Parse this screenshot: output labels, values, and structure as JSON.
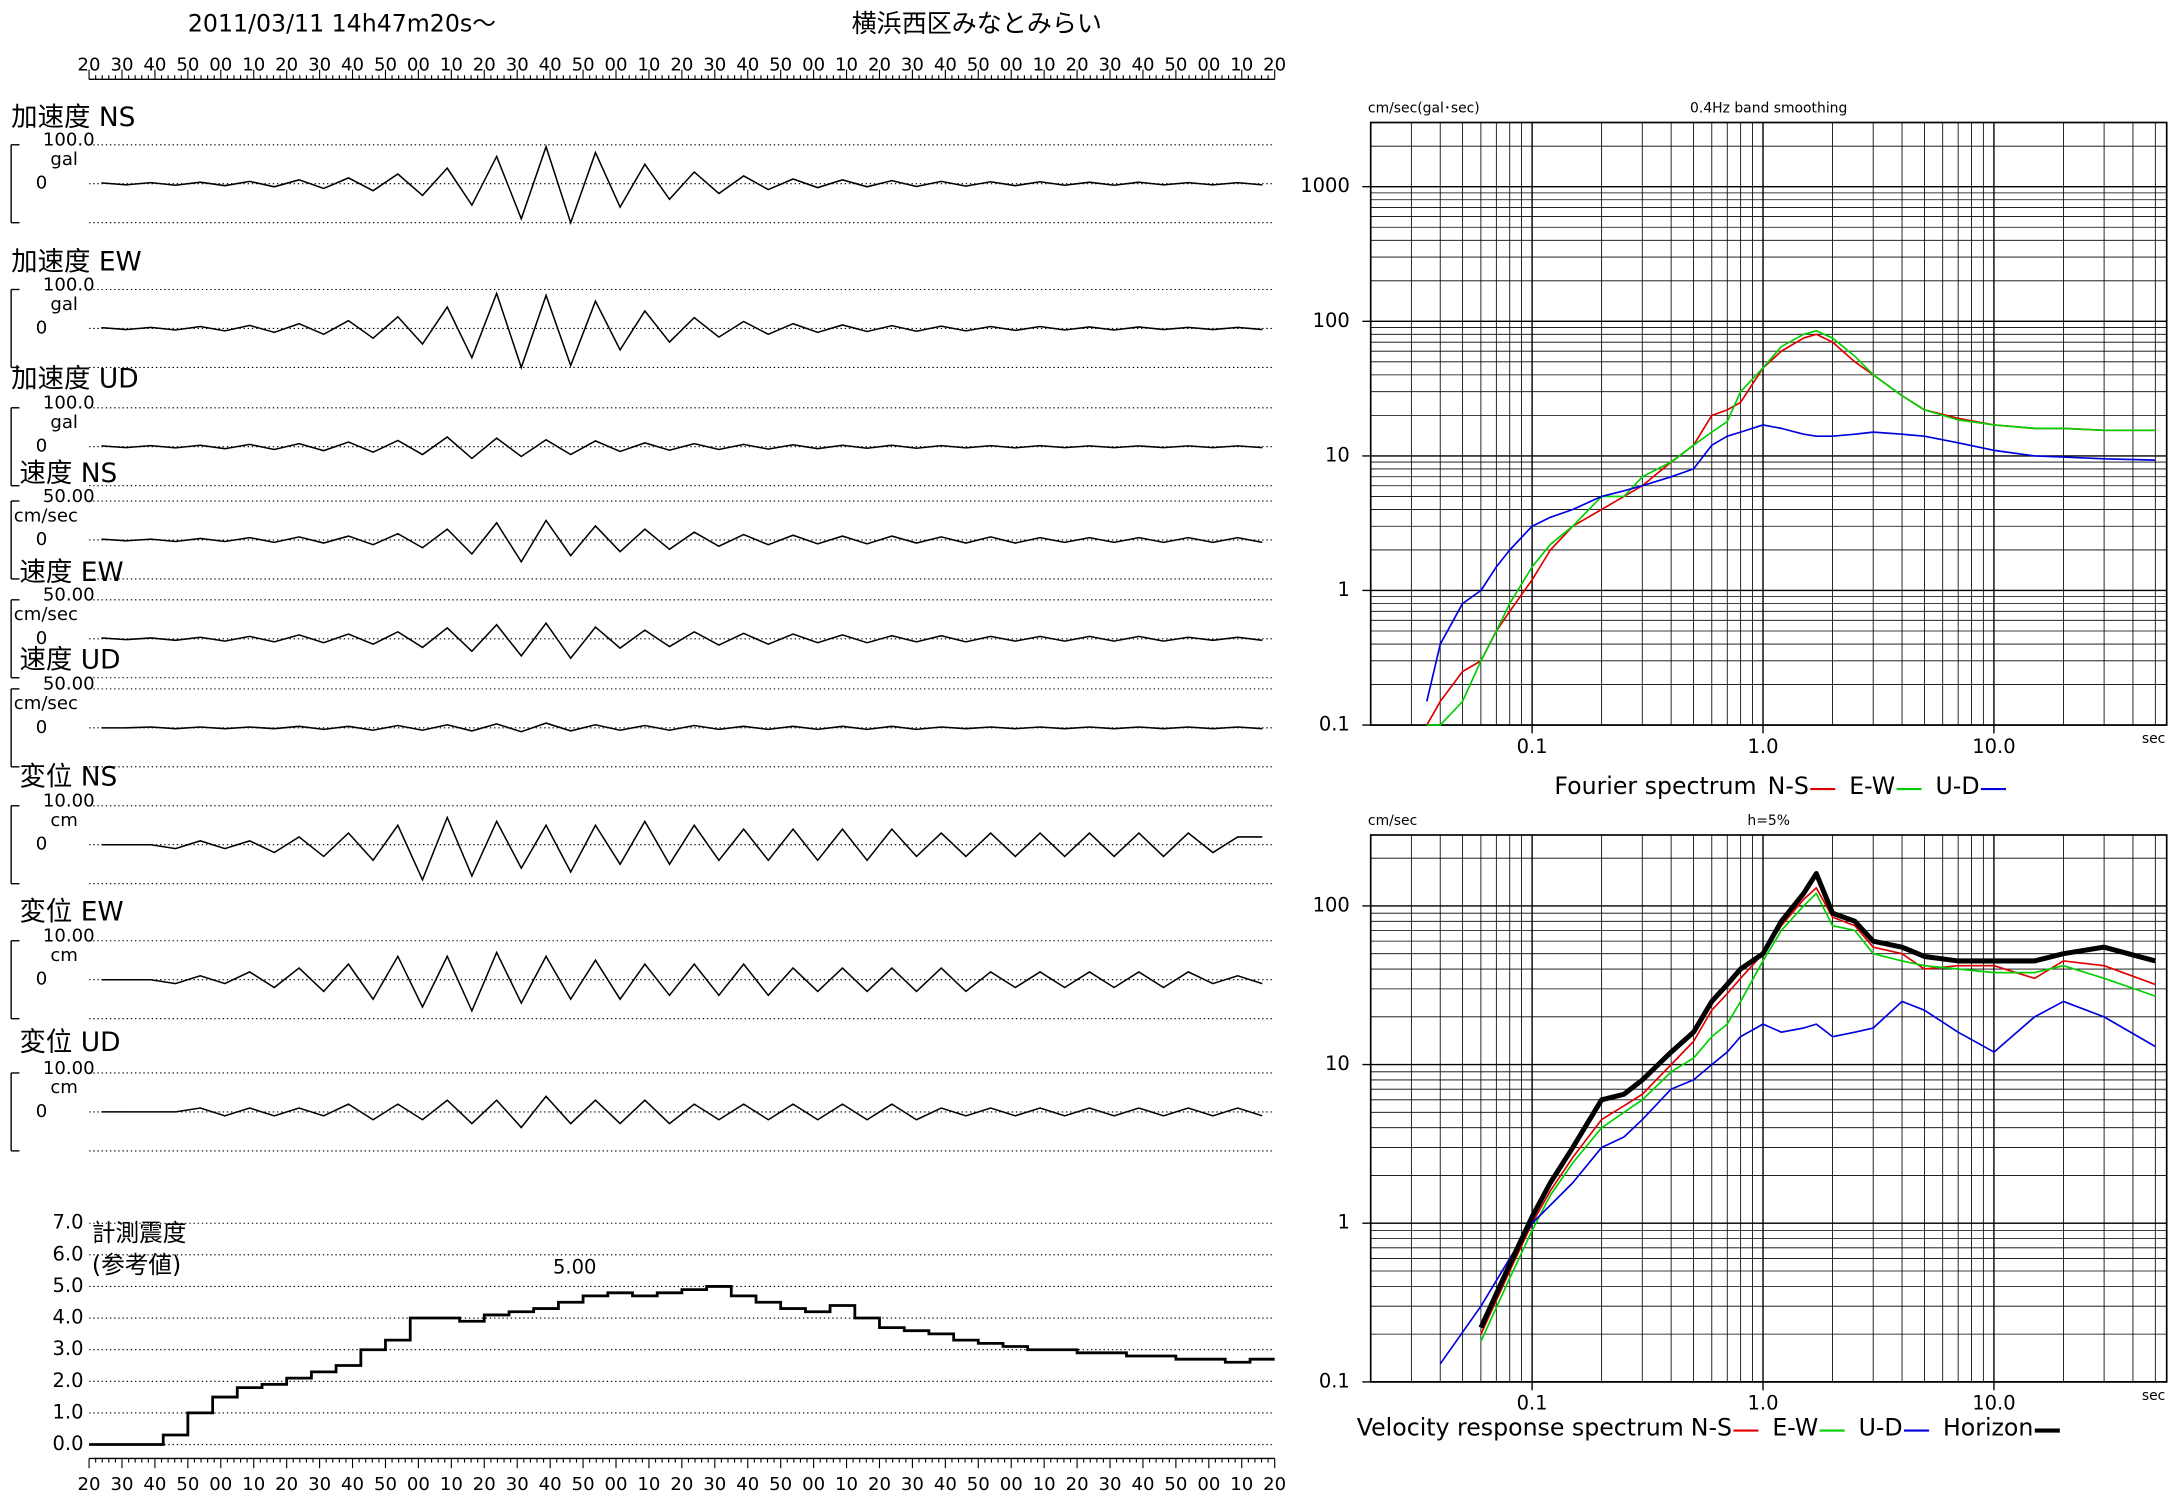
{
  "header": {
    "date": "2011/03/11  14h47m20s～",
    "location": "横浜西区みなとみらい"
  },
  "time_axis": [
    "20",
    "30",
    "40",
    "50",
    "00",
    "10",
    "20",
    "30",
    "40",
    "50",
    "00",
    "10",
    "20",
    "30",
    "40",
    "50",
    "00",
    "10",
    "20",
    "30",
    "40",
    "50",
    "00",
    "10",
    "20",
    "30",
    "40",
    "50",
    "00",
    "10",
    "20",
    "30",
    "40",
    "50",
    "00",
    "10",
    "20"
  ],
  "chart_data": [
    {
      "type": "wave",
      "label": "加速度 NS",
      "unit": "gal",
      "ylim": [
        -100,
        100
      ],
      "yticks": [
        {
          "value": 100,
          "label": "100.0"
        },
        0
      ],
      "values": [
        2,
        -3,
        3,
        -4,
        4,
        -5,
        6,
        -8,
        10,
        -12,
        15,
        -18,
        25,
        -30,
        40,
        -55,
        70,
        -90,
        95,
        -100,
        80,
        -60,
        50,
        -40,
        30,
        -25,
        20,
        -15,
        12,
        -10,
        10,
        -8,
        8,
        -7,
        6,
        -6,
        5,
        -5,
        5,
        -4,
        4,
        -4,
        4,
        -3,
        3,
        -3,
        3,
        -3
      ]
    },
    {
      "type": "wave",
      "label": "加速度 EW",
      "unit": "gal",
      "ylim": [
        -100,
        100
      ],
      "yticks": [
        {
          "value": 100,
          "label": "100.0"
        },
        0
      ],
      "values": [
        2,
        -3,
        3,
        -4,
        5,
        -6,
        8,
        -10,
        12,
        -15,
        20,
        -25,
        30,
        -40,
        55,
        -75,
        90,
        -100,
        85,
        -95,
        70,
        -55,
        45,
        -35,
        28,
        -22,
        18,
        -15,
        12,
        -10,
        9,
        -8,
        7,
        -7,
        6,
        -6,
        5,
        -5,
        5,
        -4,
        4,
        -4,
        4,
        -3,
        3,
        -3,
        3,
        -3
      ]
    },
    {
      "type": "wave",
      "label": "加速度 UD",
      "unit": "gal",
      "ylim": [
        -100,
        100
      ],
      "yticks": [
        {
          "value": 100,
          "label": "100.0"
        },
        0
      ],
      "values": [
        2,
        -2,
        3,
        -3,
        4,
        -5,
        6,
        -7,
        8,
        -10,
        12,
        -14,
        16,
        -20,
        25,
        -30,
        22,
        -25,
        18,
        -20,
        15,
        -12,
        10,
        -9,
        8,
        -7,
        6,
        -6,
        5,
        -5,
        4,
        -4,
        4,
        -4,
        3,
        -3,
        3,
        -3,
        3,
        -2,
        2,
        -2,
        2,
        -2,
        2,
        -2,
        2,
        -2
      ]
    },
    {
      "type": "wave",
      "label": "速度 NS",
      "unit": "cm/sec",
      "ylim": [
        -50,
        50
      ],
      "yticks": [
        {
          "value": 50,
          "label": "50.00"
        },
        0
      ],
      "values": [
        1,
        -1,
        1,
        -2,
        2,
        -2,
        3,
        -3,
        4,
        -4,
        5,
        -6,
        8,
        -10,
        14,
        -18,
        22,
        -28,
        25,
        -20,
        18,
        -15,
        14,
        -12,
        10,
        -8,
        7,
        -6,
        6,
        -5,
        5,
        -5,
        5,
        -4,
        4,
        -4,
        4,
        -4,
        3,
        -3,
        3,
        -3,
        3,
        -3,
        3,
        -3,
        3,
        -3
      ]
    },
    {
      "type": "wave",
      "label": "速度 EW",
      "unit": "cm/sec",
      "ylim": [
        -50,
        50
      ],
      "yticks": [
        {
          "value": 50,
          "label": "50.00"
        },
        0
      ],
      "values": [
        1,
        -1,
        1,
        -2,
        2,
        -3,
        3,
        -4,
        5,
        -5,
        6,
        -7,
        9,
        -11,
        14,
        -16,
        18,
        -22,
        20,
        -25,
        15,
        -12,
        11,
        -10,
        9,
        -8,
        7,
        -7,
        6,
        -5,
        5,
        -5,
        4,
        -4,
        4,
        -4,
        3,
        -3,
        3,
        -3,
        3,
        -3,
        3,
        -3,
        2,
        -2,
        2,
        -2
      ]
    },
    {
      "type": "wave",
      "label": "速度 UD",
      "unit": "cm/sec",
      "ylim": [
        -50,
        50
      ],
      "yticks": [
        {
          "value": 50,
          "label": "50.00"
        },
        0
      ],
      "values": [
        0,
        0,
        1,
        -1,
        1,
        -1,
        1,
        -1,
        2,
        -2,
        2,
        -3,
        3,
        -3,
        4,
        -4,
        5,
        -5,
        6,
        -4,
        4,
        -3,
        3,
        -3,
        3,
        -2,
        2,
        -2,
        2,
        -2,
        2,
        -2,
        2,
        -2,
        1,
        -1,
        1,
        -1,
        1,
        -1,
        1,
        -1,
        1,
        -1,
        1,
        -1,
        1,
        -1
      ]
    },
    {
      "type": "wave",
      "label": "変位 NS",
      "unit": "cm",
      "ylim": [
        -10,
        10
      ],
      "yticks": [
        {
          "value": 10,
          "label": "10.00"
        },
        0
      ],
      "values": [
        0,
        0,
        0,
        -1,
        1,
        -1,
        1,
        -2,
        2,
        -3,
        3,
        -4,
        5,
        -9,
        7,
        -8,
        6,
        -6,
        5,
        -7,
        5,
        -5,
        6,
        -5,
        5,
        -4,
        4,
        -4,
        4,
        -4,
        4,
        -4,
        4,
        -3,
        3,
        -3,
        3,
        -3,
        3,
        -3,
        3,
        -3,
        3,
        -3,
        3,
        -2,
        2,
        2
      ]
    },
    {
      "type": "wave",
      "label": "変位 EW",
      "unit": "cm",
      "ylim": [
        -10,
        10
      ],
      "yticks": [
        {
          "value": 10,
          "label": "10.00"
        },
        0
      ],
      "values": [
        0,
        0,
        0,
        -1,
        1,
        -1,
        2,
        -2,
        3,
        -3,
        4,
        -5,
        6,
        -7,
        6,
        -8,
        7,
        -6,
        6,
        -5,
        5,
        -5,
        4,
        -4,
        4,
        -4,
        4,
        -4,
        3,
        -3,
        3,
        -3,
        3,
        -3,
        3,
        -3,
        2,
        -2,
        2,
        -2,
        2,
        -2,
        2,
        -2,
        2,
        -1,
        1,
        -1
      ]
    },
    {
      "type": "wave",
      "label": "変位 UD",
      "unit": "cm",
      "ylim": [
        -10,
        10
      ],
      "yticks": [
        {
          "value": 10,
          "label": "10.00"
        },
        0
      ],
      "values": [
        0,
        0,
        0,
        0,
        1,
        -1,
        1,
        -1,
        1,
        -1,
        2,
        -2,
        2,
        -2,
        3,
        -3,
        3,
        -4,
        4,
        -3,
        3,
        -3,
        3,
        -3,
        2,
        -2,
        2,
        -2,
        2,
        -2,
        2,
        -2,
        2,
        -2,
        1,
        -1,
        1,
        -1,
        1,
        -1,
        1,
        -1,
        1,
        -1,
        1,
        -1,
        1,
        -1
      ]
    },
    {
      "type": "intensity",
      "title": "計測震度",
      "subtitle": "(参考値)",
      "annotation": "5.00",
      "ylim": [
        0,
        7
      ],
      "yticks": [
        {
          "value": 0,
          "label": "0.0"
        },
        {
          "value": 1,
          "label": "1.0"
        },
        {
          "value": 2,
          "label": "2.0"
        },
        {
          "value": 3,
          "label": "3.0"
        },
        {
          "value": 4,
          "label": "4.0"
        },
        {
          "value": 5,
          "label": "5.0"
        },
        {
          "value": 6,
          "label": "6.0"
        },
        {
          "value": 7,
          "label": "7.0"
        }
      ],
      "values": [
        0,
        0,
        0,
        0.3,
        1.0,
        1.5,
        1.8,
        1.9,
        2.1,
        2.3,
        2.5,
        3.0,
        3.3,
        4.0,
        4.0,
        3.9,
        4.1,
        4.2,
        4.3,
        4.5,
        4.7,
        4.8,
        4.7,
        4.8,
        4.9,
        5.0,
        4.7,
        4.5,
        4.3,
        4.2,
        4.4,
        4.0,
        3.7,
        3.6,
        3.5,
        3.3,
        3.2,
        3.1,
        3.0,
        3.0,
        2.9,
        2.9,
        2.8,
        2.8,
        2.7,
        2.7,
        2.6,
        2.7
      ]
    },
    {
      "type": "loglog",
      "title": "Fourier spectrum",
      "ylabel": "cm/sec(gal･sec)",
      "subtitle": "0.4Hz band smoothing",
      "xlabel": "sec",
      "xlim": [
        0.02,
        56
      ],
      "ylim": [
        0.1,
        3000
      ],
      "xticks": [
        0.1,
        {
          "value": 1,
          "label": "1.0"
        },
        {
          "value": 10,
          "label": "10.0"
        }
      ],
      "yticks": [
        0.1,
        1,
        10,
        100,
        1000
      ],
      "grid": true,
      "x": [
        0.035,
        0.04,
        0.05,
        0.06,
        0.07,
        0.08,
        0.1,
        0.12,
        0.15,
        0.2,
        0.25,
        0.3,
        0.4,
        0.5,
        0.6,
        0.7,
        0.8,
        1.0,
        1.2,
        1.5,
        1.7,
        2.0,
        2.5,
        3,
        4,
        5,
        7,
        10,
        15,
        20,
        30,
        50
      ],
      "series": [
        {
          "name": "N-S",
          "color": "#e00000",
          "width": 1,
          "values": [
            0.1,
            0.15,
            0.25,
            0.3,
            0.5,
            0.7,
            1.2,
            2,
            3,
            4,
            5,
            6,
            9,
            12,
            20,
            22,
            25,
            45,
            60,
            75,
            80,
            70,
            50,
            40,
            28,
            22,
            19,
            17,
            16,
            16,
            15.5,
            15.5
          ]
        },
        {
          "name": "E-W",
          "color": "#00d000",
          "width": 1,
          "values": [
            0.1,
            0.1,
            0.15,
            0.3,
            0.5,
            0.8,
            1.5,
            2.2,
            3,
            5,
            5,
            7,
            9,
            12,
            15,
            18,
            30,
            45,
            65,
            80,
            85,
            75,
            55,
            40,
            28,
            22,
            18.5,
            17,
            16,
            16,
            15.5,
            15.5
          ]
        },
        {
          "name": "U-D",
          "color": "#0000e0",
          "width": 1,
          "values": [
            0.15,
            0.4,
            0.8,
            1,
            1.5,
            2,
            3,
            3.5,
            4,
            5,
            5.5,
            6,
            7,
            8,
            12,
            14,
            15,
            17,
            16,
            14.5,
            14,
            14,
            14.5,
            15,
            14.5,
            14,
            12.5,
            11,
            10,
            9.8,
            9.5,
            9.3
          ]
        }
      ]
    },
    {
      "type": "loglog",
      "title": "Velocity response spectrum",
      "ylabel": "cm/sec",
      "subtitle": "h=5%",
      "xlabel": "sec",
      "xlim": [
        0.02,
        56
      ],
      "ylim": [
        0.1,
        280
      ],
      "xticks": [
        0.1,
        {
          "value": 1,
          "label": "1.0"
        },
        {
          "value": 10,
          "label": "10.0"
        }
      ],
      "yticks": [
        0.1,
        1,
        10,
        100
      ],
      "grid": true,
      "x": [
        0.04,
        0.06,
        0.08,
        0.1,
        0.12,
        0.15,
        0.2,
        0.25,
        0.3,
        0.4,
        0.5,
        0.6,
        0.7,
        0.8,
        1.0,
        1.2,
        1.5,
        1.7,
        2,
        2.5,
        3,
        4,
        5,
        7,
        10,
        15,
        20,
        30,
        50
      ],
      "series": [
        {
          "name": "N-S",
          "color": "#e00000",
          "width": 1,
          "values": [
            null,
            0.2,
            0.5,
            1.0,
            1.6,
            2.6,
            4.5,
            5.5,
            6.5,
            10,
            14,
            22,
            28,
            35,
            50,
            75,
            110,
            130,
            85,
            75,
            55,
            50,
            40,
            42,
            42,
            35,
            45,
            42,
            32
          ]
        },
        {
          "name": "E-W",
          "color": "#00d000",
          "width": 1,
          "values": [
            null,
            0.18,
            0.45,
            0.9,
            1.5,
            2.4,
            4,
            5,
            6,
            9,
            11,
            15,
            18,
            25,
            45,
            70,
            100,
            120,
            75,
            70,
            50,
            45,
            42,
            40,
            38,
            38,
            42,
            35,
            27
          ]
        },
        {
          "name": "U-D",
          "color": "#0000e0",
          "width": 1,
          "values": [
            0.13,
            0.3,
            0.6,
            1.0,
            1.3,
            1.8,
            3,
            3.5,
            4.5,
            7,
            8,
            10,
            12,
            15,
            18,
            16,
            17,
            18,
            15,
            16,
            17,
            25,
            22,
            16,
            12,
            20,
            25,
            20,
            13
          ]
        },
        {
          "name": "Horizon",
          "color": "#000000",
          "width": 3,
          "values": [
            null,
            0.22,
            0.55,
            1.1,
            1.8,
            3,
            6,
            6.5,
            8,
            12,
            16,
            25,
            32,
            40,
            50,
            80,
            120,
            160,
            90,
            80,
            60,
            55,
            48,
            45,
            45,
            45,
            50,
            55,
            45
          ]
        }
      ]
    }
  ]
}
